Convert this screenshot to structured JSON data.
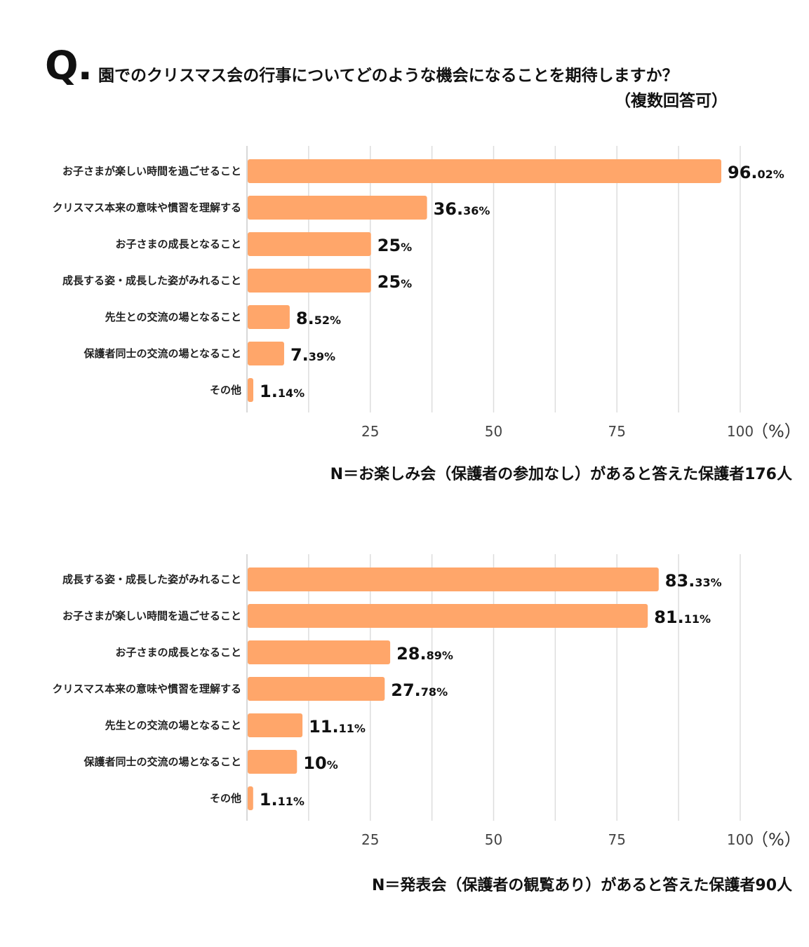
{
  "question": {
    "mark": "Q.",
    "text": "園でのクリスマス会の行事についてどのような機会になることを期待しますか？",
    "sub": "（複数回答可）"
  },
  "colors": {
    "bar": "#FFA66A",
    "grid": "#dddddd",
    "axis": "#cccccc"
  },
  "chart_data": [
    {
      "type": "bar",
      "orientation": "horizontal",
      "title": "",
      "xlabel": "",
      "ylabel": "",
      "xlim": [
        0,
        100
      ],
      "ticks": [
        25,
        50,
        75,
        100
      ],
      "unit_label": "（%）",
      "note": "N＝お楽しみ会（保護者の参加なし）があると答えた保護者176人",
      "categories": [
        "お子さまが楽しい時間を過ごせること",
        "クリスマス本来の意味や慣習を理解する",
        "お子さまの成長となること",
        "成長する姿・成長した姿がみれること",
        "先生との交流の場となること",
        "保護者同士の交流の場となること",
        "その他"
      ],
      "values": [
        96.02,
        36.36,
        25,
        25,
        8.52,
        7.39,
        1.14
      ],
      "labels": [
        [
          "96.",
          "02%"
        ],
        [
          "36.",
          "36%"
        ],
        [
          "25",
          "%"
        ],
        [
          "25",
          "%"
        ],
        [
          "8.",
          "52%"
        ],
        [
          "7.",
          "39%"
        ],
        [
          "1.",
          "14%"
        ]
      ]
    },
    {
      "type": "bar",
      "orientation": "horizontal",
      "title": "",
      "xlabel": "",
      "ylabel": "",
      "xlim": [
        0,
        100
      ],
      "ticks": [
        25,
        50,
        75,
        100
      ],
      "unit_label": "（%）",
      "note": "N＝発表会（保護者の観覧あり）があると答えた保護者90人",
      "categories": [
        "成長する姿・成長した姿がみれること",
        "お子さまが楽しい時間を過ごせること",
        "お子さまの成長となること",
        "クリスマス本来の意味や慣習を理解する",
        "先生との交流の場となること",
        "保護者同士の交流の場となること",
        "その他"
      ],
      "values": [
        83.33,
        81.11,
        28.89,
        27.78,
        11.11,
        10,
        1.11
      ],
      "labels": [
        [
          "83.",
          "33%"
        ],
        [
          "81.",
          "11%"
        ],
        [
          "28.",
          "89%"
        ],
        [
          "27.",
          "78%"
        ],
        [
          "11.",
          "11%"
        ],
        [
          "10",
          "%"
        ],
        [
          "1.",
          "11%"
        ]
      ]
    }
  ]
}
